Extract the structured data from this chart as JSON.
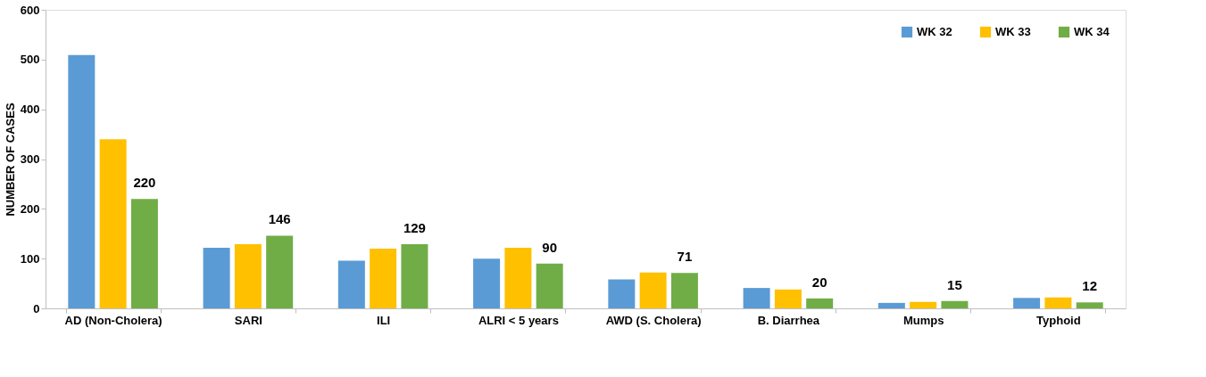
{
  "chart_data": {
    "type": "bar",
    "ylabel": "NUMBER OF CASES",
    "categories": [
      "AD (Non-Cholera)",
      "SARI",
      "ILI",
      "ALRI < 5 years",
      "AWD (S. Cholera)",
      "B. Diarrhea",
      "Mumps",
      "Typhoid"
    ],
    "series": [
      {
        "name": "WK 32",
        "color": "#5b9bd5",
        "values": [
          509,
          122,
          96,
          100,
          58,
          41,
          11,
          21
        ]
      },
      {
        "name": "WK 33",
        "color": "#ffc000",
        "values": [
          340,
          129,
          120,
          122,
          72,
          38,
          13,
          22
        ]
      },
      {
        "name": "WK 34",
        "color": "#70ad47",
        "values": [
          220,
          146,
          129,
          90,
          71,
          20,
          15,
          12
        ],
        "value_labels": [
          "220",
          "146",
          "129",
          "90",
          "71",
          "20",
          "15",
          "12"
        ]
      }
    ],
    "ylim": [
      0,
      600
    ],
    "yticks": [
      0,
      100,
      200,
      300,
      400,
      500,
      600
    ],
    "grid": false,
    "legend": "top right"
  }
}
